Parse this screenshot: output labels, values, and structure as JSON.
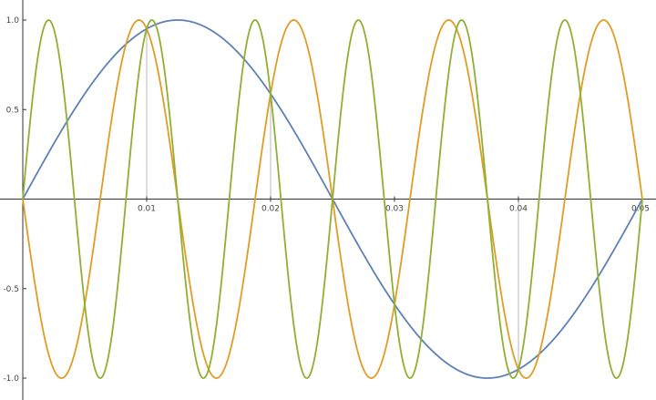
{
  "chart_data": {
    "type": "line",
    "title": "",
    "xlabel": "",
    "ylabel": "",
    "xlim": [
      0,
      0.05
    ],
    "ylim": [
      -1.0,
      1.0
    ],
    "grid": false,
    "x_ticks": [
      {
        "value": 0.01,
        "label": "0.01"
      },
      {
        "value": 0.02,
        "label": "0.02"
      },
      {
        "value": 0.03,
        "label": "0.03"
      },
      {
        "value": 0.04,
        "label": "0.04"
      },
      {
        "value": 0.05,
        "label": "0.05"
      }
    ],
    "y_ticks": [
      {
        "value": 1.0,
        "label": "1.0"
      },
      {
        "value": 0.5,
        "label": "0.5"
      },
      {
        "value": -0.5,
        "label": "-0.5"
      },
      {
        "value": -1.0,
        "label": "-1.0"
      }
    ],
    "drop_lines": [
      {
        "x": 0.01,
        "y": 0.951
      },
      {
        "x": 0.02,
        "y": 0.588
      },
      {
        "x": 0.04,
        "y": -0.951
      }
    ],
    "series": [
      {
        "color": "#5e81b5",
        "function": "sin(2*pi*f*x)",
        "frequency_hz": 20,
        "x": [
          0,
          0.0025,
          0.005,
          0.0075,
          0.01,
          0.0125,
          0.015,
          0.0175,
          0.02,
          0.0225,
          0.025,
          0.0275,
          0.03,
          0.0325,
          0.035,
          0.0375,
          0.04,
          0.0425,
          0.045,
          0.0475,
          0.05
        ],
        "values": [
          0,
          0.309,
          0.588,
          0.809,
          0.951,
          1.0,
          0.951,
          0.809,
          0.588,
          0.309,
          0,
          -0.309,
          -0.588,
          -0.809,
          -0.951,
          -1.0,
          -0.951,
          -0.809,
          -0.588,
          -0.309,
          0
        ]
      },
      {
        "color": "#e19c24",
        "function": "-sin(2*pi*f*x)",
        "frequency_hz": 80,
        "x": [
          0,
          0.003125,
          0.00625,
          0.009375,
          0.0125,
          0.015625,
          0.01875,
          0.021875,
          0.025,
          0.028125,
          0.03125,
          0.034375,
          0.0375,
          0.040625,
          0.04375,
          0.046875,
          0.05
        ],
        "values": [
          0,
          -1.0,
          0,
          1.0,
          0,
          -1.0,
          0,
          1.0,
          0,
          -1.0,
          0,
          1.0,
          0,
          -1.0,
          0,
          1.0,
          0
        ]
      },
      {
        "color": "#8fb032",
        "function": "sin(2*pi*f*x)",
        "frequency_hz": 120,
        "x": [
          0,
          0.002083,
          0.004167,
          0.00625,
          0.008333,
          0.010417,
          0.0125,
          0.014583,
          0.016667,
          0.01875,
          0.020833,
          0.022917,
          0.025,
          0.027083,
          0.029167,
          0.03125,
          0.033333,
          0.035417,
          0.0375,
          0.039583,
          0.041667,
          0.04375,
          0.045833,
          0.047917,
          0.05
        ],
        "values": [
          0,
          1.0,
          0,
          -1.0,
          0,
          1.0,
          0,
          -1.0,
          0,
          1.0,
          0,
          -1.0,
          0,
          1.0,
          0,
          -1.0,
          0,
          1.0,
          0,
          -1.0,
          0,
          1.0,
          0,
          -1.0,
          0
        ]
      }
    ]
  }
}
